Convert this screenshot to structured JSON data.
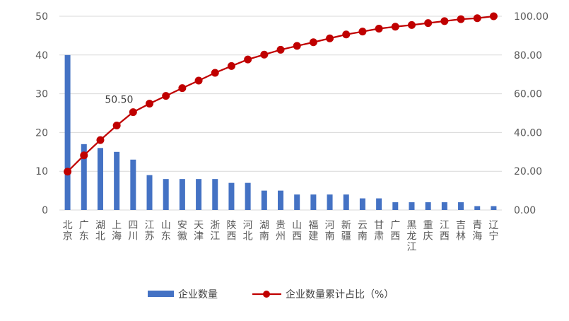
{
  "chart_data": {
    "type": "bar",
    "categories": [
      "北京",
      "广东",
      "湖北",
      "上海",
      "四川",
      "江苏",
      "山东",
      "安徽",
      "天津",
      "浙江",
      "陕西",
      "河北",
      "湖南",
      "贵州",
      "山西",
      "福建",
      "河南",
      "新疆",
      "云南",
      "甘肃",
      "广西",
      "黑龙江",
      "重庆",
      "江西",
      "吉林",
      "青海",
      "辽宁"
    ],
    "series": [
      {
        "name": "企业数量",
        "type": "bar",
        "axis": "left",
        "color": "#4472C4",
        "values": [
          40,
          17,
          16,
          15,
          13,
          9,
          8,
          8,
          8,
          8,
          7,
          7,
          5,
          5,
          4,
          4,
          4,
          4,
          3,
          3,
          2,
          2,
          2,
          2,
          2,
          1,
          1
        ]
      },
      {
        "name": "企业数量累计占比（%）",
        "type": "line",
        "axis": "right",
        "color": "#C00000",
        "values": [
          19.8,
          28.2,
          36.1,
          43.6,
          50.5,
          54.9,
          58.9,
          62.9,
          66.8,
          70.8,
          74.3,
          77.7,
          80.2,
          82.7,
          84.7,
          86.6,
          88.6,
          90.6,
          92.1,
          93.6,
          94.6,
          95.5,
          96.5,
          97.5,
          98.5,
          99.0,
          100.0
        ]
      }
    ],
    "annotations": [
      {
        "series": 1,
        "category": "四川",
        "label": "50.50"
      }
    ],
    "y_left": {
      "min": 0,
      "max": 50,
      "step": 10,
      "ticks": [
        "0",
        "10",
        "20",
        "30",
        "40",
        "50"
      ]
    },
    "y_right": {
      "min": 0,
      "max": 100,
      "step": 20,
      "ticks": [
        "0.00",
        "20.00",
        "40.00",
        "60.00",
        "80.00",
        "100.00"
      ]
    },
    "grid": true,
    "legend_position": "bottom"
  },
  "legend": {
    "bar_label": "企业数量",
    "line_label": "企业数量累计占比（%）"
  }
}
